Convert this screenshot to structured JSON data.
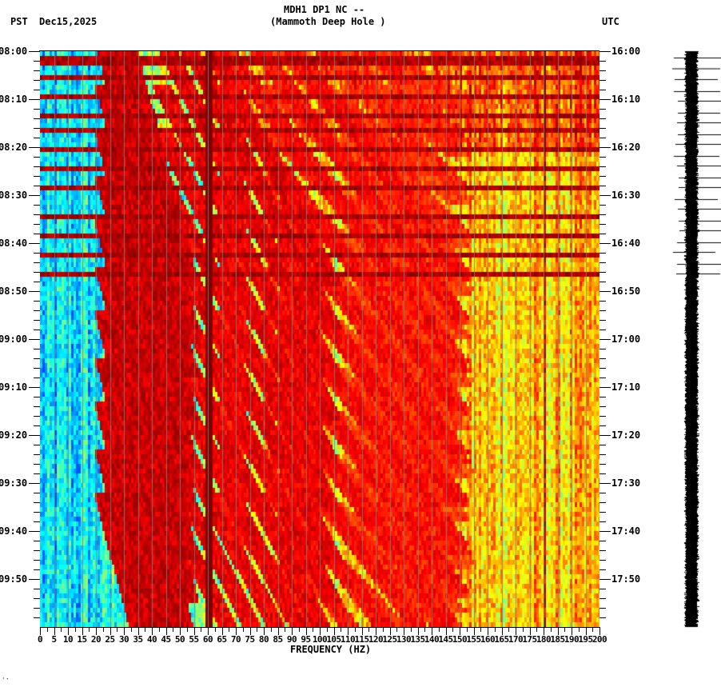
{
  "header": {
    "station": "MDH1 DP1 NC --",
    "location": "(Mammoth Deep Hole )",
    "left_tz": "PST",
    "date": "Dec15,2025",
    "right_tz": "UTC"
  },
  "footer": {
    "mark": "˙‵"
  },
  "chart_data": {
    "type": "heatmap",
    "title": "MDH1 DP1 NC -- (Mammoth Deep Hole )",
    "subtitle": "Dec15,2025",
    "xlabel": "FREQUENCY (HZ)",
    "ylabel_left": "PST",
    "ylabel_right": "UTC",
    "xlim": [
      0,
      200
    ],
    "x_ticks": [
      0,
      5,
      10,
      15,
      20,
      25,
      30,
      35,
      40,
      45,
      50,
      55,
      60,
      65,
      70,
      75,
      80,
      85,
      90,
      95,
      100,
      105,
      110,
      115,
      120,
      125,
      130,
      135,
      140,
      145,
      150,
      155,
      160,
      165,
      170,
      175,
      180,
      185,
      190,
      195,
      200
    ],
    "y_ticks_left": [
      "08:00",
      "08:10",
      "08:20",
      "08:30",
      "08:40",
      "08:50",
      "09:00",
      "09:10",
      "09:20",
      "09:30",
      "09:40",
      "09:50"
    ],
    "y_ticks_right": [
      "16:00",
      "16:10",
      "16:20",
      "16:30",
      "16:40",
      "16:50",
      "17:00",
      "17:10",
      "17:20",
      "17:30",
      "17:40",
      "17:50"
    ],
    "time_span_minutes": 120,
    "minor_tick_minutes": 2,
    "colormap": [
      "#0000ff",
      "#0080ff",
      "#00ffff",
      "#80ff80",
      "#ffff00",
      "#ff8000",
      "#ff0000",
      "#800000"
    ],
    "features": {
      "persistent_line_hz": [
        60
      ],
      "weak_line_hz": [
        180
      ],
      "banded_noise_period_until_minute": 47,
      "banded_noise_rows_minutes": [
        1.5,
        5,
        9,
        13,
        16,
        20,
        24,
        28,
        34,
        38,
        42,
        46
      ],
      "glide_families": "repeating downward-sweeping harmonic arcs (tremor glides) from ~08:15 to 10:00, arc starts near 20-30 Hz recurring every ~10 min",
      "low_freq_quiet_band_hz": [
        0,
        25
      ],
      "high_freq_bright_until_minute": 20
    },
    "seismogram": {
      "trace_minutes": 120,
      "hour_markers_minutes": [
        0,
        4.5,
        9,
        14,
        18,
        23,
        27,
        32,
        36,
        41,
        45,
        50,
        54,
        59,
        63,
        68,
        72,
        77,
        81,
        86,
        90
      ]
    }
  }
}
